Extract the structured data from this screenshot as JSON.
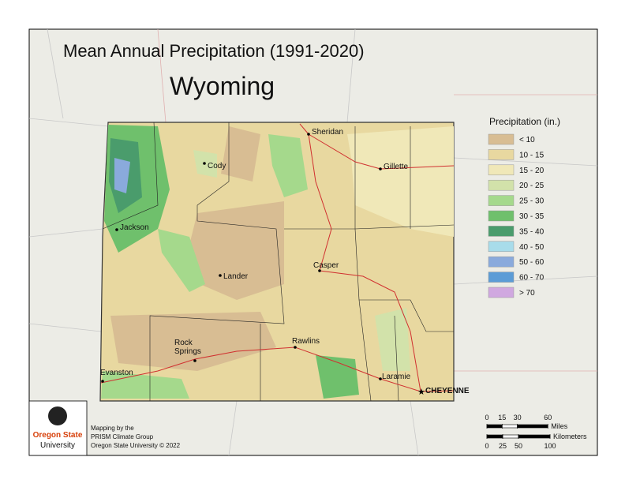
{
  "header": {
    "title": "Mean Annual Precipitation (1991-2020)",
    "state": "Wyoming"
  },
  "legend": {
    "title": "Precipitation (in.)",
    "items": [
      {
        "label": "< 10",
        "color": "#d8bd93"
      },
      {
        "label": "10 - 15",
        "color": "#e8d8a0"
      },
      {
        "label": "15 - 20",
        "color": "#f0e8b8"
      },
      {
        "label": "20 - 25",
        "color": "#d2e2aa"
      },
      {
        "label": "25 - 30",
        "color": "#a5d98c"
      },
      {
        "label": "30 - 35",
        "color": "#6fc06c"
      },
      {
        "label": "35 - 40",
        "color": "#4a9c6c"
      },
      {
        "label": "40 - 50",
        "color": "#a8dcea"
      },
      {
        "label": "50 - 60",
        "color": "#8aaadc"
      },
      {
        "label": "60 - 70",
        "color": "#5c9cd6"
      },
      {
        "label": "> 70",
        "color": "#d0a8e0"
      }
    ]
  },
  "cities": [
    "Sheridan",
    "Cody",
    "Gillette",
    "Jackson",
    "Lander",
    "Casper",
    "Rock Springs",
    "Rawlins",
    "Evanston",
    "Laramie",
    "CHEYENNE"
  ],
  "credits": [
    "Mapping by the",
    "PRISM Climate Group",
    "Oregon State University © 2022"
  ],
  "logo": [
    "Oregon State",
    "University"
  ],
  "scale": {
    "miles_label": "Miles",
    "miles": [
      0,
      15,
      30,
      60
    ],
    "km_label": "Kilometers",
    "km": [
      0,
      25,
      50,
      100
    ]
  }
}
